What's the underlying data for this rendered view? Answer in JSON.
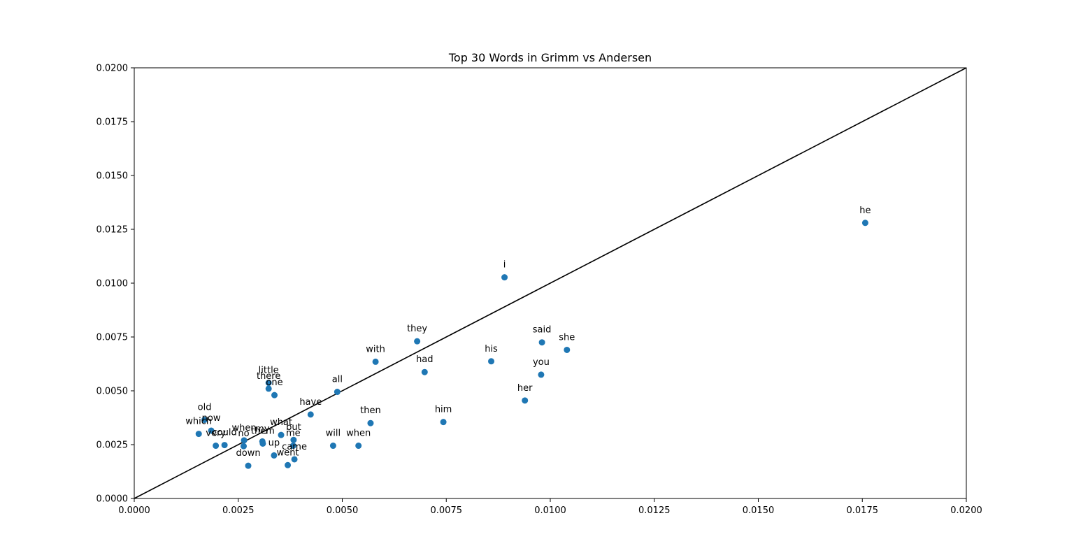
{
  "chart_data": {
    "type": "scatter",
    "title": "Top 30 Words in Grimm vs Andersen",
    "xlabel": "",
    "ylabel": "",
    "xlim": [
      0.0,
      0.02
    ],
    "ylim": [
      0.0,
      0.02
    ],
    "xticks": [
      "0.0000",
      "0.0025",
      "0.0050",
      "0.0075",
      "0.0100",
      "0.0125",
      "0.0150",
      "0.0175",
      "0.0200"
    ],
    "yticks": [
      "0.0000",
      "0.0025",
      "0.0050",
      "0.0075",
      "0.0100",
      "0.0125",
      "0.0150",
      "0.0175",
      "0.0200"
    ],
    "grid": false,
    "reference_line": {
      "from": [
        0.0,
        0.0
      ],
      "to": [
        0.02,
        0.02
      ],
      "color": "#000000"
    },
    "point_color": "#1f77b4",
    "points": [
      {
        "label": "he",
        "x": 0.01757,
        "y": 0.0128
      },
      {
        "label": "i",
        "x": 0.0089,
        "y": 0.01027
      },
      {
        "label": "they",
        "x": 0.0068,
        "y": 0.0073
      },
      {
        "label": "said",
        "x": 0.0098,
        "y": 0.00725
      },
      {
        "label": "she",
        "x": 0.0104,
        "y": 0.0069
      },
      {
        "label": "with",
        "x": 0.0058,
        "y": 0.00635
      },
      {
        "label": "his",
        "x": 0.00858,
        "y": 0.00637
      },
      {
        "label": "had",
        "x": 0.00698,
        "y": 0.00587
      },
      {
        "label": "you",
        "x": 0.00978,
        "y": 0.00575
      },
      {
        "label": "little",
        "x": 0.00323,
        "y": 0.00537
      },
      {
        "label": "there",
        "x": 0.00323,
        "y": 0.0051
      },
      {
        "label": "one",
        "x": 0.00337,
        "y": 0.0048
      },
      {
        "label": "all",
        "x": 0.00488,
        "y": 0.00495
      },
      {
        "label": "her",
        "x": 0.00939,
        "y": 0.00455
      },
      {
        "label": "have",
        "x": 0.00424,
        "y": 0.0039
      },
      {
        "label": "old",
        "x": 0.00169,
        "y": 0.00365
      },
      {
        "label": "then",
        "x": 0.00568,
        "y": 0.0035
      },
      {
        "label": "him",
        "x": 0.00743,
        "y": 0.00355
      },
      {
        "label": "now",
        "x": 0.00185,
        "y": 0.00315
      },
      {
        "label": "which",
        "x": 0.00155,
        "y": 0.003
      },
      {
        "label": "what",
        "x": 0.00353,
        "y": 0.00295
      },
      {
        "label": "but",
        "x": 0.00383,
        "y": 0.00272
      },
      {
        "label": "when",
        "x": 0.00264,
        "y": 0.0027
      },
      {
        "label": "my",
        "x": 0.00308,
        "y": 0.00265
      },
      {
        "label": "them",
        "x": 0.00309,
        "y": 0.00255
      },
      {
        "label": "me",
        "x": 0.00382,
        "y": 0.00245
      },
      {
        "label": "very",
        "x": 0.00196,
        "y": 0.00245
      },
      {
        "label": "could",
        "x": 0.00217,
        "y": 0.00248
      },
      {
        "label": "no",
        "x": 0.00263,
        "y": 0.00243
      },
      {
        "label": "will",
        "x": 0.00478,
        "y": 0.00245
      },
      {
        "label": "when",
        "x": 0.00539,
        "y": 0.00245
      },
      {
        "label": "up",
        "x": 0.00336,
        "y": 0.002
      },
      {
        "label": "came",
        "x": 0.00385,
        "y": 0.00182
      },
      {
        "label": "went",
        "x": 0.00369,
        "y": 0.00155
      },
      {
        "label": "down",
        "x": 0.00274,
        "y": 0.00152
      }
    ]
  }
}
